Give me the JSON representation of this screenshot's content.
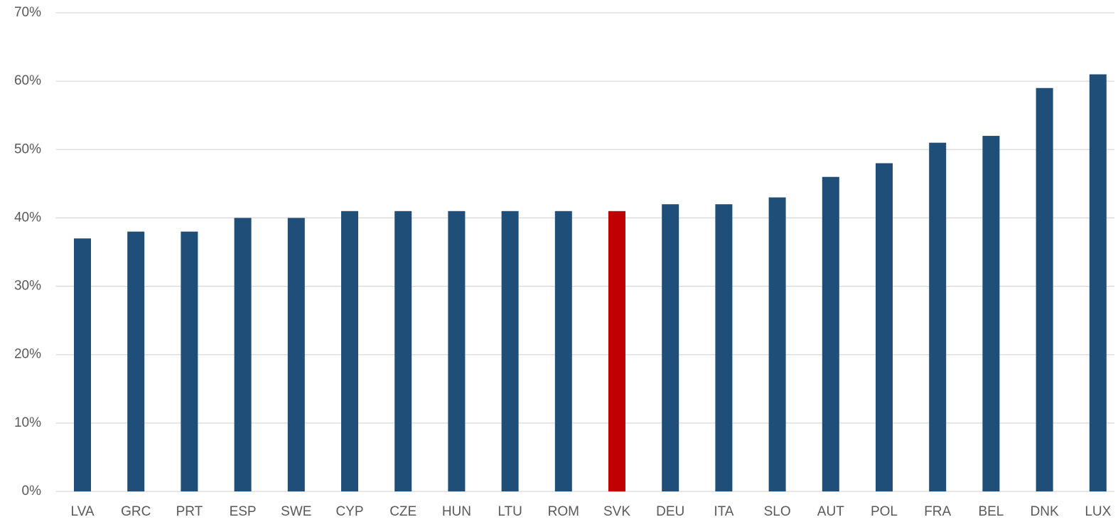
{
  "chart_data": {
    "type": "bar",
    "categories": [
      "LVA",
      "GRC",
      "PRT",
      "ESP",
      "SWE",
      "CYP",
      "CZE",
      "HUN",
      "LTU",
      "ROM",
      "SVK",
      "DEU",
      "ITA",
      "SLO",
      "AUT",
      "POL",
      "FRA",
      "BEL",
      "DNK",
      "LUX"
    ],
    "values": [
      37,
      38,
      38,
      40,
      40,
      41,
      41,
      41,
      41,
      41,
      41,
      42,
      42,
      43,
      46,
      48,
      51,
      52,
      59,
      61
    ],
    "colors": [
      "#1f4e79",
      "#1f4e79",
      "#1f4e79",
      "#1f4e79",
      "#1f4e79",
      "#1f4e79",
      "#1f4e79",
      "#1f4e79",
      "#1f4e79",
      "#1f4e79",
      "#c00000",
      "#1f4e79",
      "#1f4e79",
      "#1f4e79",
      "#1f4e79",
      "#1f4e79",
      "#1f4e79",
      "#1f4e79",
      "#1f4e79",
      "#1f4e79"
    ],
    "ylim": [
      0,
      70
    ],
    "yticks": [
      {
        "value": 0,
        "label": "0%"
      },
      {
        "value": 10,
        "label": "10%"
      },
      {
        "value": 20,
        "label": "20%"
      },
      {
        "value": 30,
        "label": "30%"
      },
      {
        "value": 40,
        "label": "40%"
      },
      {
        "value": 50,
        "label": "50%"
      },
      {
        "value": 60,
        "label": "60%"
      },
      {
        "value": 70,
        "label": "70%"
      }
    ],
    "grid": true
  }
}
